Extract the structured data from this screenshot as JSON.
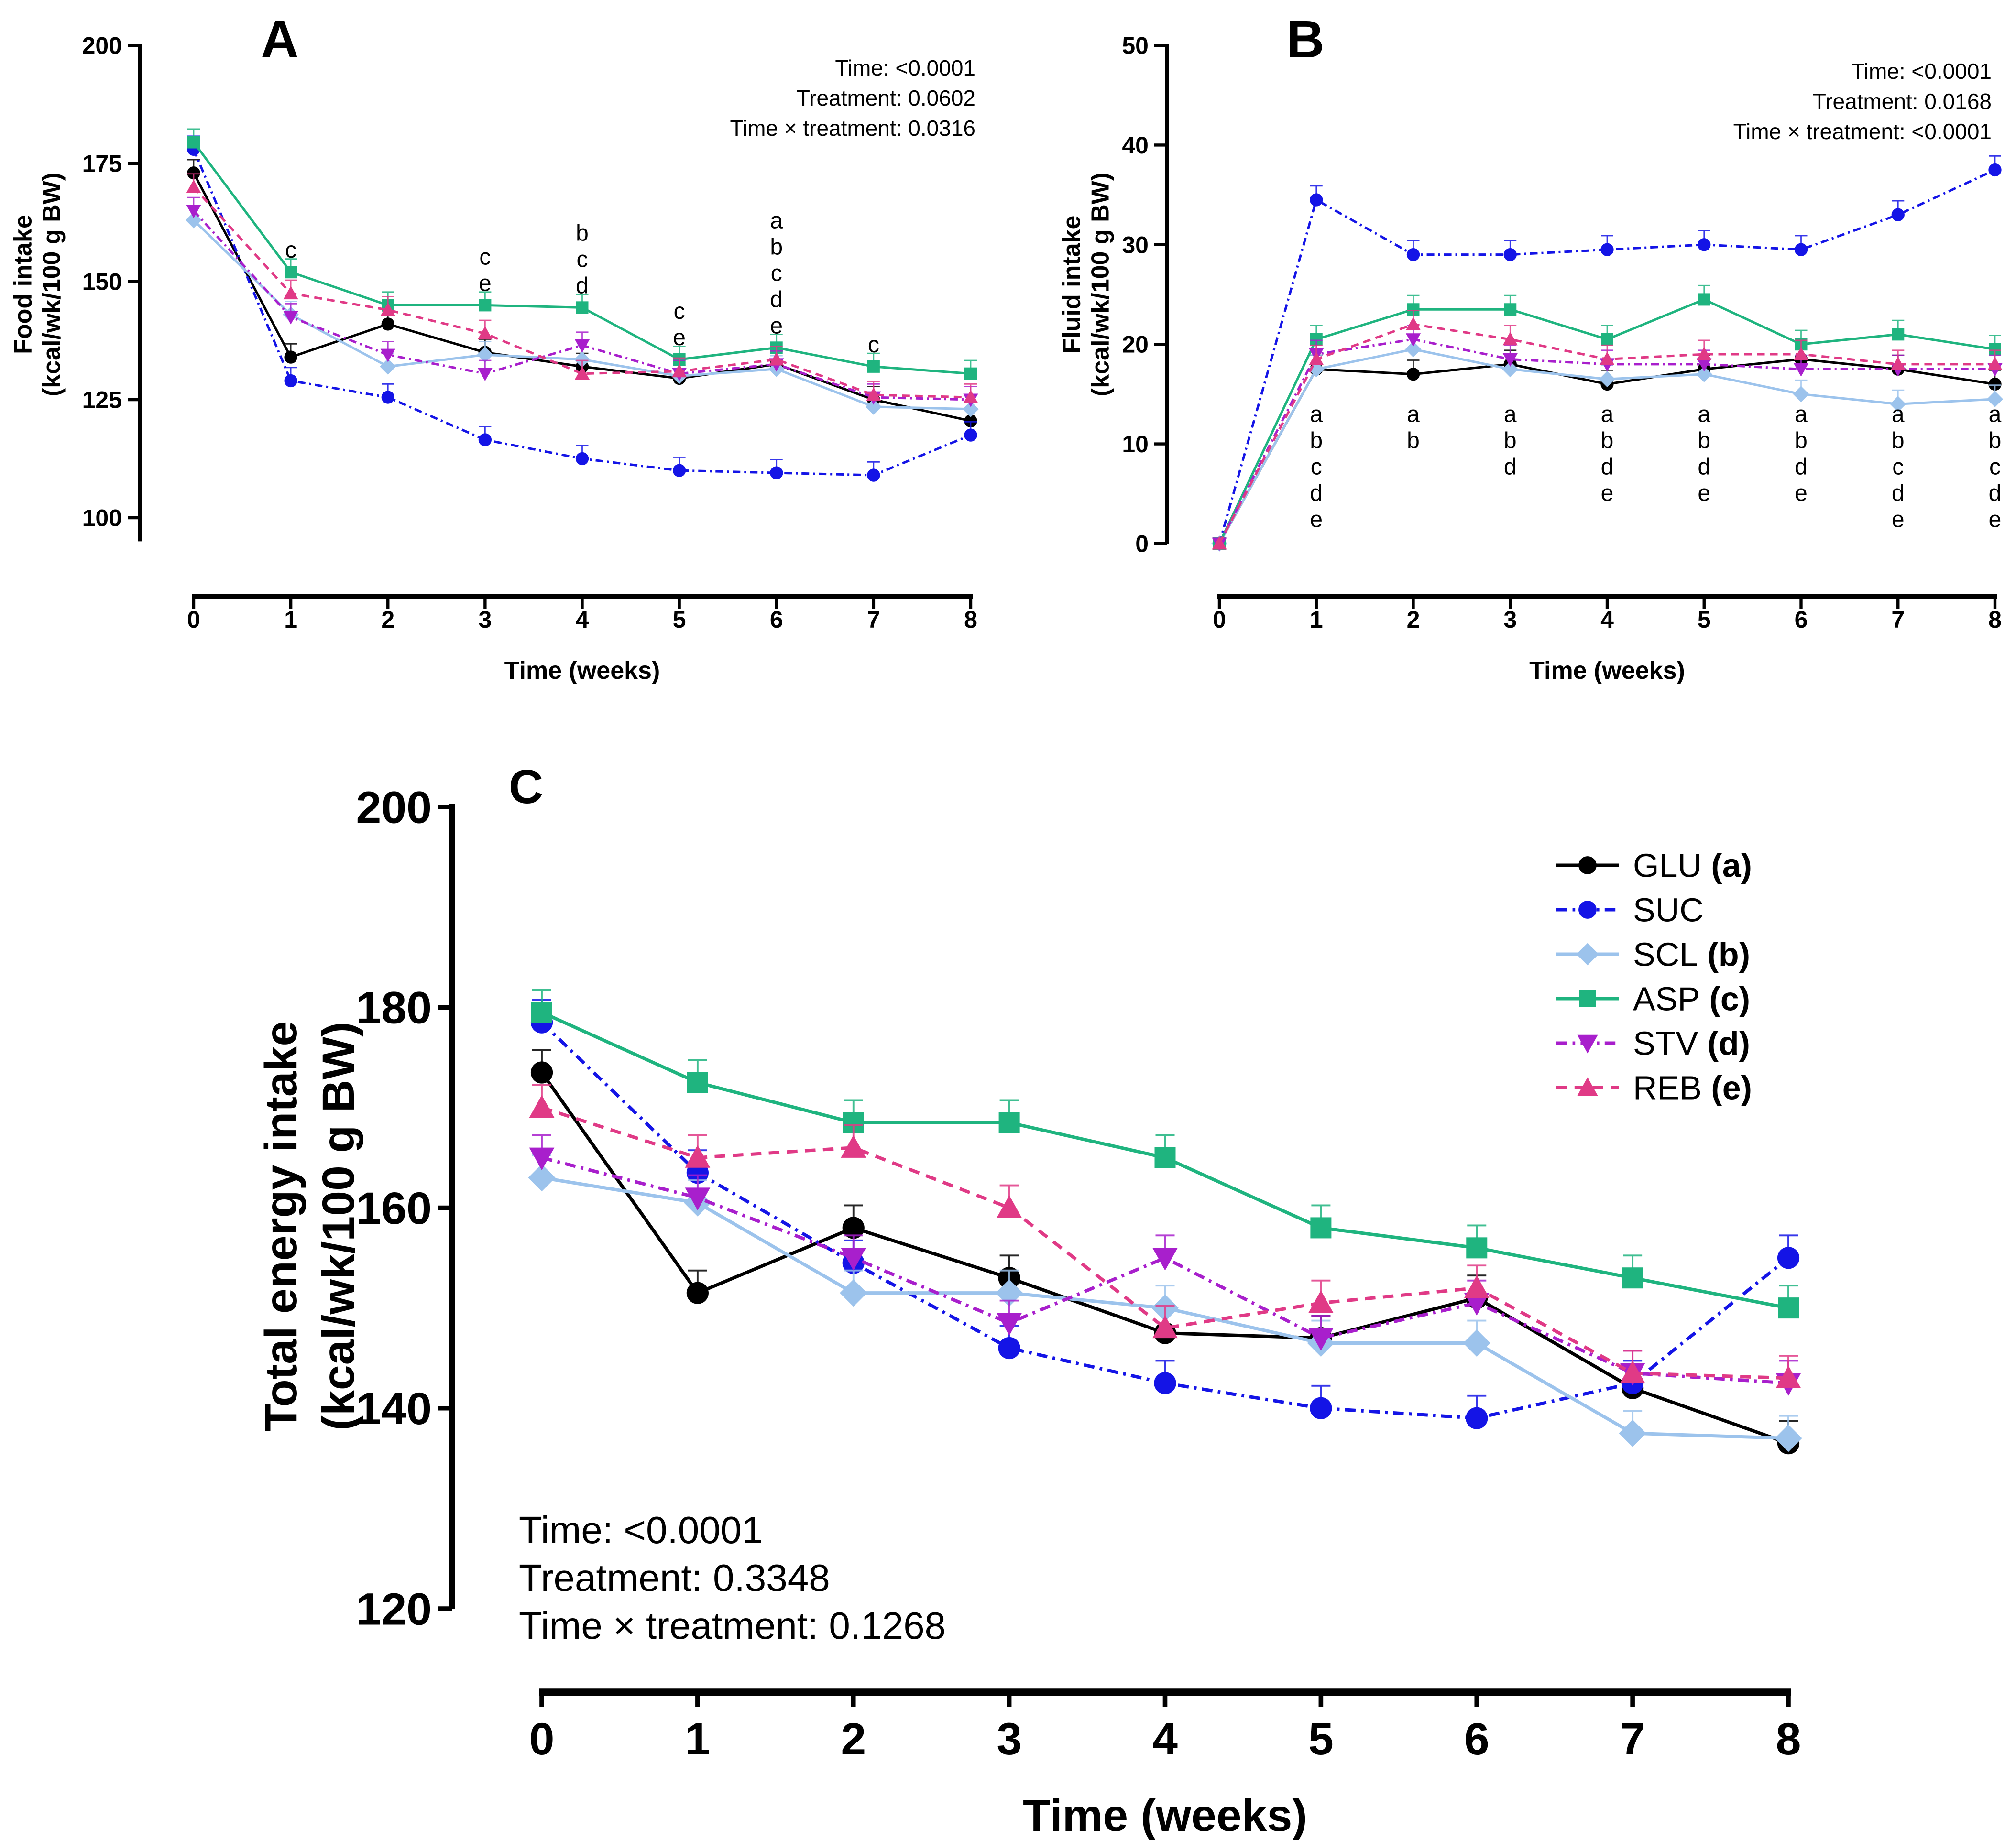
{
  "chart_data": [
    {
      "panel": "A",
      "type": "line",
      "title": "",
      "xlabel": "Time (weeks)",
      "ylabel": [
        "Food intake",
        "(kcal/wk/100 g BW)"
      ],
      "x": [
        0,
        1,
        2,
        3,
        4,
        5,
        6,
        7,
        8
      ],
      "xlim": [
        0,
        8
      ],
      "ylim": [
        95,
        200
      ],
      "yticks": [
        100,
        125,
        150,
        175,
        200
      ],
      "grid": false,
      "stats": [
        "Time: <0.0001",
        "Treatment: 0.0602",
        "Time × treatment: 0.0316"
      ],
      "series": [
        {
          "name": "GLU",
          "code": "a",
          "values": [
            173,
            134,
            141,
            135,
            132,
            129.5,
            132.5,
            125,
            120.5
          ]
        },
        {
          "name": "SUC",
          "code": "",
          "values": [
            178,
            129,
            125.5,
            116.5,
            112.5,
            110,
            109.5,
            109,
            117.5
          ]
        },
        {
          "name": "SCL",
          "code": "b",
          "values": [
            163,
            143,
            132,
            134.5,
            133.5,
            130,
            131.5,
            123.5,
            123
          ]
        },
        {
          "name": "ASP",
          "code": "c",
          "values": [
            179.5,
            152,
            145,
            145,
            144.5,
            133.5,
            136,
            132,
            130.5
          ]
        },
        {
          "name": "STV",
          "code": "d",
          "values": [
            165,
            142.5,
            134.5,
            130.5,
            136.5,
            130.5,
            132.5,
            125.5,
            125
          ]
        },
        {
          "name": "REB",
          "code": "e",
          "values": [
            170,
            147.5,
            144,
            139,
            130.5,
            131,
            133.5,
            126,
            125.5
          ]
        }
      ],
      "annotations": [
        {
          "x": 1,
          "letters": [
            "c"
          ]
        },
        {
          "x": 3,
          "letters": [
            "c",
            "e"
          ]
        },
        {
          "x": 4,
          "letters": [
            "b",
            "c",
            "d"
          ]
        },
        {
          "x": 5,
          "letters": [
            "c",
            "e"
          ]
        },
        {
          "x": 6,
          "letters": [
            "a",
            "b",
            "c",
            "d",
            "e"
          ]
        },
        {
          "x": 7,
          "letters": [
            "c"
          ]
        }
      ]
    },
    {
      "panel": "B",
      "type": "line",
      "title": "",
      "xlabel": "Time (weeks)",
      "ylabel": [
        "Fluid intake",
        "(kcal/wk/100 g BW)"
      ],
      "x": [
        0,
        1,
        2,
        3,
        4,
        5,
        6,
        7,
        8
      ],
      "xlim": [
        0,
        8
      ],
      "ylim": [
        0,
        50
      ],
      "yticks": [
        0,
        10,
        20,
        30,
        40,
        50
      ],
      "grid": false,
      "stats": [
        "Time: <0.0001",
        "Treatment: 0.0168",
        "Time × treatment: <0.0001"
      ],
      "series": [
        {
          "name": "GLU",
          "code": "a",
          "values": [
            0,
            17.5,
            17,
            18,
            16,
            17.5,
            18.5,
            17.5,
            16
          ]
        },
        {
          "name": "SUC",
          "code": "",
          "values": [
            0,
            34.5,
            29,
            29,
            29.5,
            30,
            29.5,
            33,
            37.5
          ]
        },
        {
          "name": "SCL",
          "code": "b",
          "values": [
            0,
            17.5,
            19.5,
            17.5,
            16.5,
            17,
            15,
            14,
            14.5
          ]
        },
        {
          "name": "ASP",
          "code": "c",
          "values": [
            0,
            20.5,
            23.5,
            23.5,
            20.5,
            24.5,
            20,
            21,
            19.5
          ]
        },
        {
          "name": "STV",
          "code": "d",
          "values": [
            0,
            19,
            20.5,
            18.5,
            18,
            18,
            17.5,
            17.5,
            17.5
          ]
        },
        {
          "name": "REB",
          "code": "e",
          "values": [
            0,
            18.5,
            22,
            20.5,
            18.5,
            19,
            19,
            18,
            18
          ]
        }
      ],
      "annotations": [
        {
          "x": 1,
          "letters": [
            "a",
            "b",
            "c",
            "d",
            "e"
          ]
        },
        {
          "x": 2,
          "letters": [
            "a",
            "b"
          ]
        },
        {
          "x": 3,
          "letters": [
            "a",
            "b",
            "d"
          ]
        },
        {
          "x": 4,
          "letters": [
            "a",
            "b",
            "d",
            "e"
          ]
        },
        {
          "x": 5,
          "letters": [
            "a",
            "b",
            "d",
            "e"
          ]
        },
        {
          "x": 6,
          "letters": [
            "a",
            "b",
            "d",
            "e"
          ]
        },
        {
          "x": 7,
          "letters": [
            "a",
            "b",
            "c",
            "d",
            "e"
          ]
        },
        {
          "x": 8,
          "letters": [
            "a",
            "b",
            "c",
            "d",
            "e"
          ]
        }
      ]
    },
    {
      "panel": "C",
      "type": "line",
      "title": "",
      "xlabel": "Time (weeks)",
      "ylabel": [
        "Total energy intake",
        "(kcal/wk/100 g BW)"
      ],
      "x": [
        0,
        1,
        2,
        3,
        4,
        5,
        6,
        7,
        8
      ],
      "xlim": [
        0,
        8
      ],
      "ylim": [
        120,
        200
      ],
      "yticks": [
        120,
        140,
        160,
        180,
        200
      ],
      "grid": false,
      "legend_position": "top-right",
      "stats": [
        "Time: <0.0001",
        "Treatment: 0.3348",
        "Time × treatment: 0.1268"
      ],
      "series": [
        {
          "name": "GLU",
          "code": "a",
          "values": [
            173.5,
            151.5,
            158,
            153,
            147.5,
            147,
            151,
            142,
            136.5
          ]
        },
        {
          "name": "SUC",
          "code": "",
          "values": [
            178.5,
            163.5,
            154.5,
            146,
            142.5,
            140,
            139,
            142.5,
            155
          ]
        },
        {
          "name": "SCL",
          "code": "b",
          "values": [
            163,
            160.5,
            151.5,
            151.5,
            150,
            146.5,
            146.5,
            137.5,
            137
          ]
        },
        {
          "name": "ASP",
          "code": "c",
          "values": [
            179.5,
            172.5,
            168.5,
            168.5,
            165,
            158,
            156,
            153,
            150
          ]
        },
        {
          "name": "STV",
          "code": "d",
          "values": [
            165,
            161,
            155,
            148.5,
            155,
            147,
            150.5,
            143.5,
            142.5
          ]
        },
        {
          "name": "REB",
          "code": "e",
          "values": [
            170,
            165,
            166,
            160,
            148,
            150.5,
            152,
            143.5,
            143
          ]
        }
      ]
    }
  ],
  "series_styles": {
    "GLU": {
      "color": "#000000",
      "dash": "solid",
      "marker": "circle"
    },
    "SUC": {
      "color": "#1414e6",
      "dash": "dashdot",
      "marker": "circle"
    },
    "SCL": {
      "color": "#9cc3ec",
      "dash": "solid",
      "marker": "diamond"
    },
    "ASP": {
      "color": "#1fb47f",
      "dash": "solid",
      "marker": "square"
    },
    "STV": {
      "color": "#a81fcc",
      "dash": "dashdot",
      "marker": "triangle-down"
    },
    "REB": {
      "color": "#e03a86",
      "dash": "dashed",
      "marker": "triangle-up"
    }
  }
}
